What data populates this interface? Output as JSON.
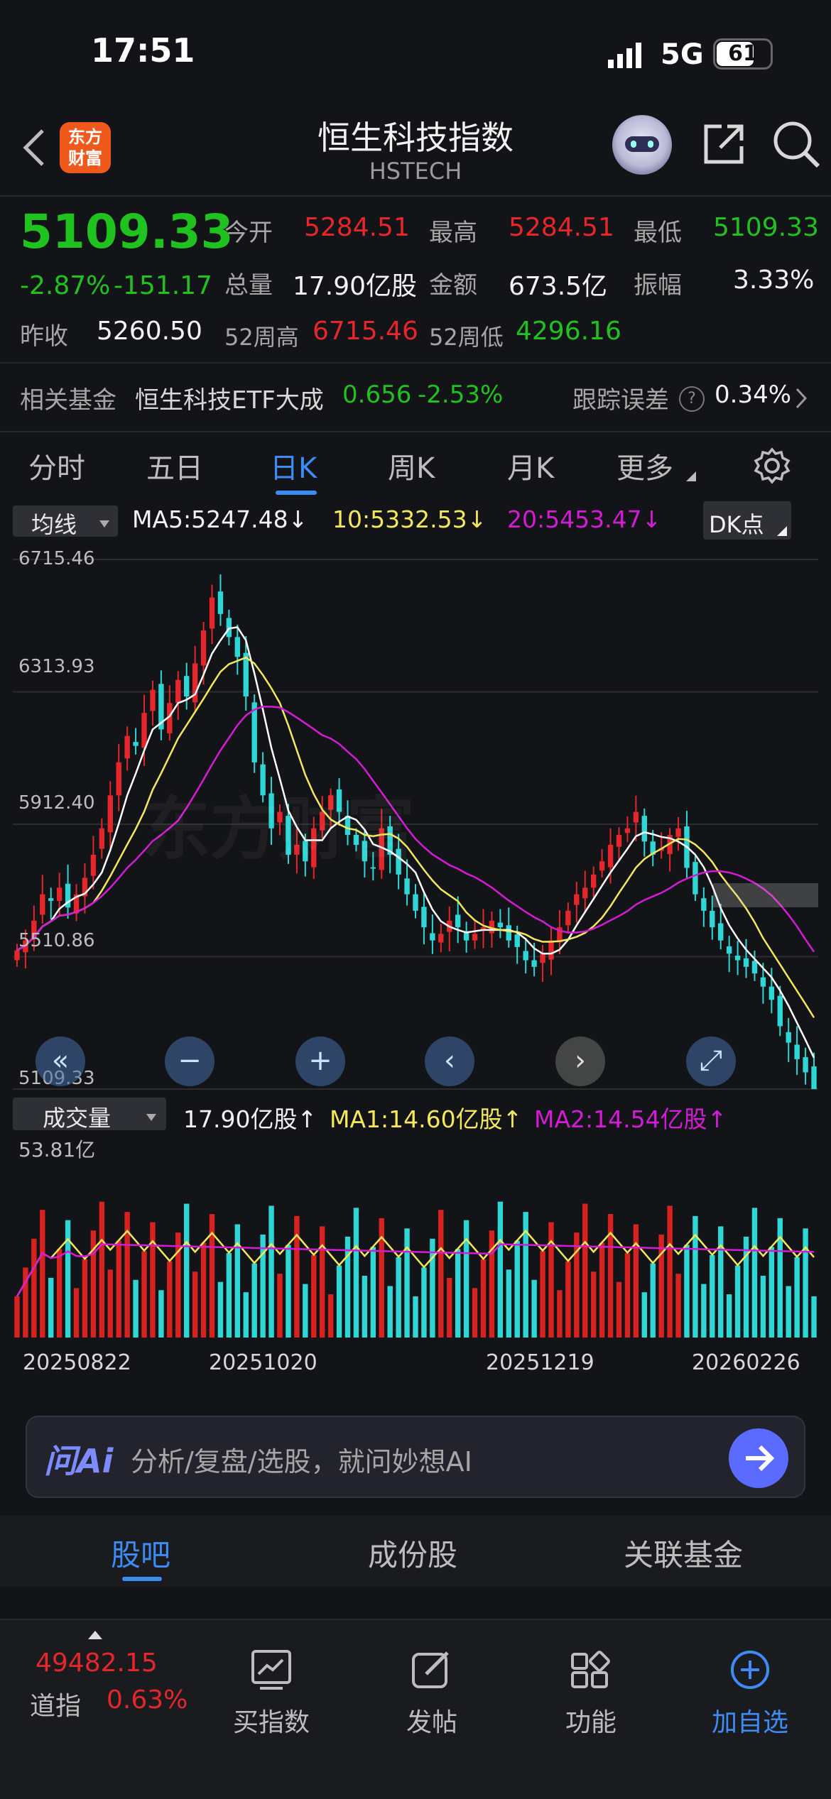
{
  "status": {
    "time": "17:51",
    "network": "5G",
    "battery": "61"
  },
  "header": {
    "logo_line1": "东方",
    "logo_line2": "财富",
    "title": "恒生科技指数",
    "code": "HSTECH"
  },
  "quote": {
    "price": "5109.33",
    "change_pct": "-2.87%",
    "change": "-151.17",
    "open_label": "今开",
    "open": "5284.51",
    "high_label": "最高",
    "high": "5284.51",
    "low_label": "最低",
    "low": "5109.33",
    "volume_label": "总量",
    "volume": "17.90亿股",
    "amount_label": "金额",
    "amount": "673.5亿",
    "amplitude_label": "振幅",
    "amplitude": "3.33%",
    "prev_close_label": "昨收",
    "prev_close": "5260.50",
    "w52_high_label": "52周高",
    "w52_high": "6715.46",
    "w52_low_label": "52周低",
    "w52_low": "4296.16"
  },
  "fund": {
    "label": "相关基金",
    "name": "恒生科技ETF大成",
    "price": "0.656",
    "pct": "-2.53%",
    "tracking_label": "跟踪误差",
    "tracking": "0.34%"
  },
  "tabs": [
    "分时",
    "五日",
    "日K",
    "周K",
    "月K",
    "更多"
  ],
  "active_tab": 2,
  "ma_bar": {
    "selector": "均线",
    "ma5": "MA5:5247.48↓",
    "ma10": "10:5332.53↓",
    "ma20": "20:5453.47↓",
    "dk": "DK点"
  },
  "vol_bar": {
    "selector": "成交量",
    "vol": "17.90亿股↑",
    "ma1": "MA1:14.60亿股↑",
    "ma2": "MA2:14.54亿股↑",
    "vol_max": "53.81亿"
  },
  "watermark": "东方财富",
  "chart_data": {
    "type": "candlestick",
    "y_ticks": [
      "6715.46",
      "6313.93",
      "5912.40",
      "5510.86",
      "5109.33"
    ],
    "ylim": [
      5109.33,
      6715.46
    ],
    "x_ticks": [
      "20250822",
      "20251020",
      "20251219",
      "20260226"
    ],
    "series": [
      {
        "name": "MA5",
        "color": "#ffffff"
      },
      {
        "name": "MA10",
        "color": "#f5e85a"
      },
      {
        "name": "MA20",
        "color": "#d51bd5"
      }
    ],
    "close": [
      5530,
      5560,
      5620,
      5700,
      5680,
      5720,
      5660,
      5700,
      5750,
      5820,
      5900,
      6000,
      6100,
      6180,
      6150,
      6250,
      6320,
      6200,
      6280,
      6350,
      6300,
      6400,
      6500,
      6600,
      6550,
      6480,
      6420,
      6300,
      6100,
      6000,
      5900,
      5950,
      5820,
      5850,
      5800,
      5900,
      5950,
      6000,
      5950,
      5880,
      5850,
      5800,
      5780,
      5900,
      5820,
      5760,
      5700,
      5650,
      5600,
      5560,
      5580,
      5620,
      5600,
      5560,
      5580,
      5600,
      5620,
      5600,
      5560,
      5540,
      5500,
      5480,
      5520,
      5560,
      5600,
      5650,
      5700,
      5720,
      5760,
      5800,
      5850,
      5880,
      5900,
      5950,
      5860,
      5820,
      5840,
      5880,
      5900,
      5780,
      5700,
      5650,
      5600,
      5560,
      5520,
      5500,
      5480,
      5460,
      5420,
      5380,
      5300,
      5250,
      5200,
      5160,
      5109.33
    ],
    "ma_values": {
      "ma5": 5247.48,
      "ma10": 5332.53,
      "ma20": 5453.47
    },
    "volume_max_label": "53.81亿"
  },
  "ai_bar": {
    "brand": "问Ai",
    "placeholder": "分析/复盘/选股，就问妙想AI"
  },
  "lower_tabs": [
    "股吧",
    "成份股",
    "关联基金"
  ],
  "bottom_nav": {
    "ticker_value": "49482.15",
    "ticker_name": "道指",
    "ticker_pct": "0.63%",
    "items": [
      "买指数",
      "发帖",
      "功能",
      "加自选"
    ]
  },
  "colors": {
    "up": "#e5262a",
    "down": "#1fc21f",
    "accent": "#3b8cf5",
    "ma5": "#ffffff",
    "ma10": "#f5e85a",
    "ma20": "#d51bd5"
  }
}
